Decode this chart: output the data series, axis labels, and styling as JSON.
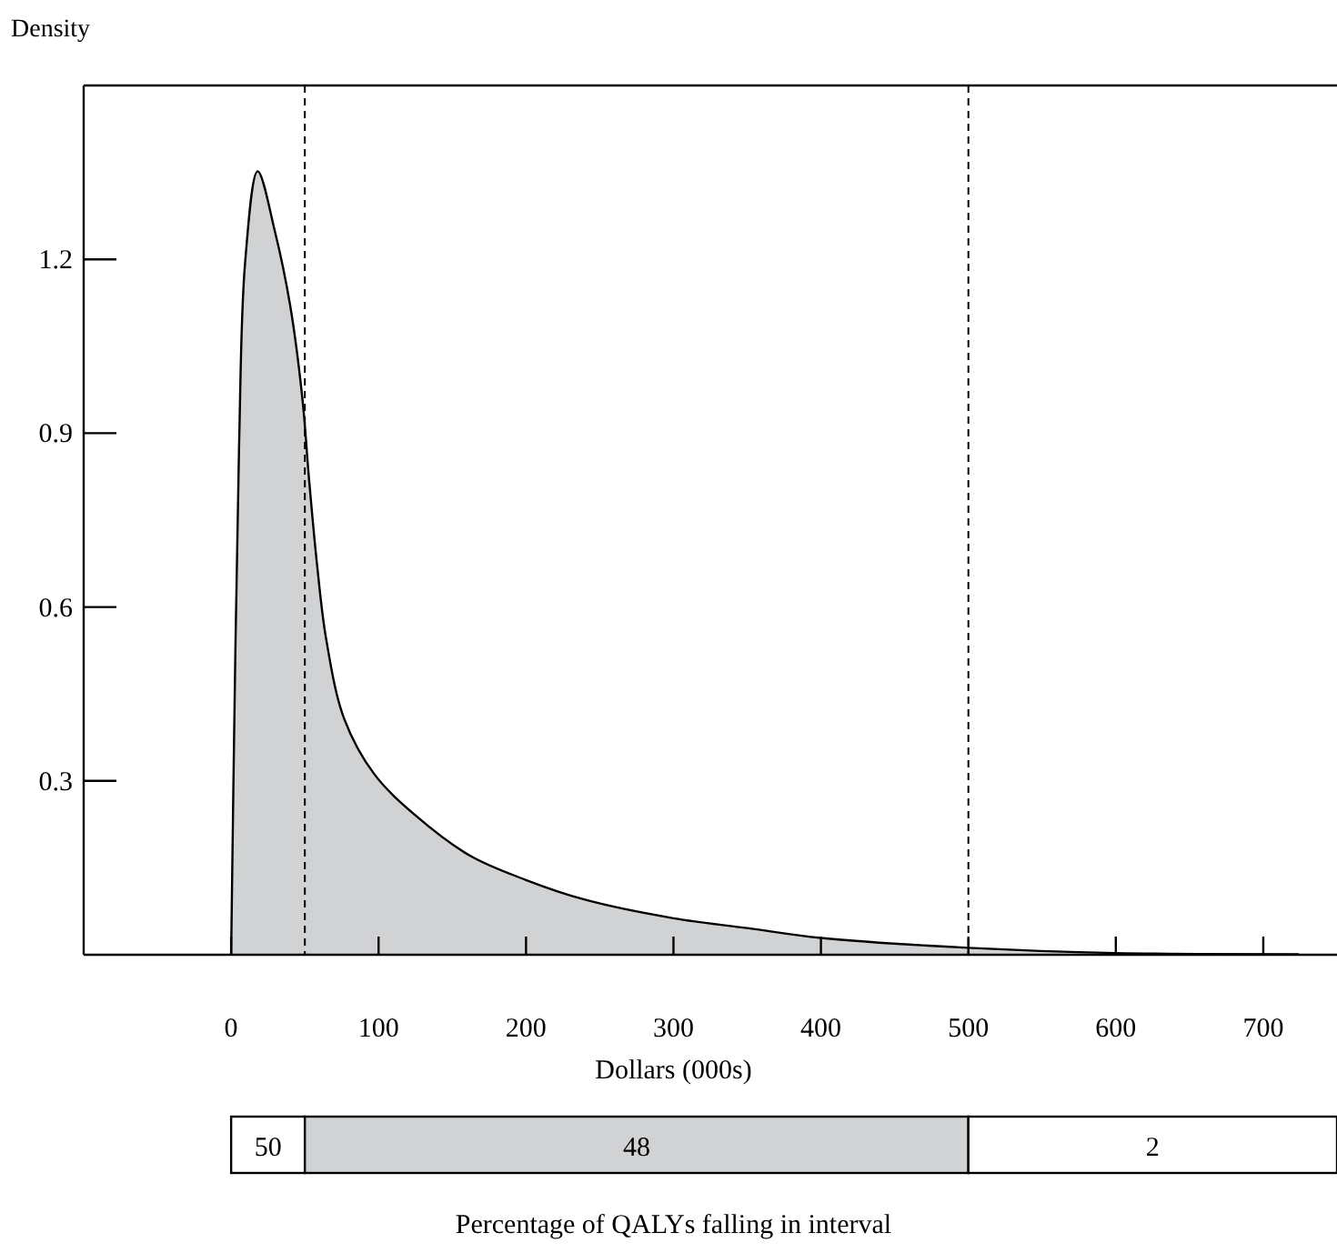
{
  "chart_data": [
    {
      "type": "area",
      "ylabel": "Density",
      "xlabel": "Dollars (000s)",
      "x": [
        0,
        2.5,
        5.4,
        9.5,
        18,
        29.8,
        40,
        48.2,
        53,
        58.4,
        64.5,
        76.7,
        97,
        125.7,
        162,
        200,
        240,
        300,
        350,
        400,
        500,
        600,
        724
      ],
      "values": [
        0,
        0.46,
        0.88,
        1.195,
        1.352,
        1.247,
        1.121,
        0.963,
        0.816,
        0.67,
        0.544,
        0.407,
        0.312,
        0.239,
        0.171,
        0.129,
        0.095,
        0.063,
        0.046,
        0.029,
        0.012,
        0.003,
        0.001
      ],
      "color": "#d1d2d4",
      "xlim": [
        -100,
        750
      ],
      "xticks": [
        0,
        100,
        200,
        300,
        400,
        500,
        600,
        700
      ],
      "ylim": [
        0,
        1.5
      ],
      "yticks": [
        0.3,
        0.6,
        0.9,
        1.2
      ],
      "ref_lines": [
        {
          "axis": "x",
          "value": 50,
          "line_style": "dashed"
        },
        {
          "axis": "x",
          "value": 500,
          "line_style": "dashed"
        }
      ]
    },
    {
      "type": "other",
      "xlabel": "Percentage of QALYs falling in interval",
      "annotations": [
        "50",
        "48",
        "2"
      ],
      "colors": [
        "#ffffff",
        "#d1d2d4",
        "#ffffff"
      ]
    }
  ]
}
